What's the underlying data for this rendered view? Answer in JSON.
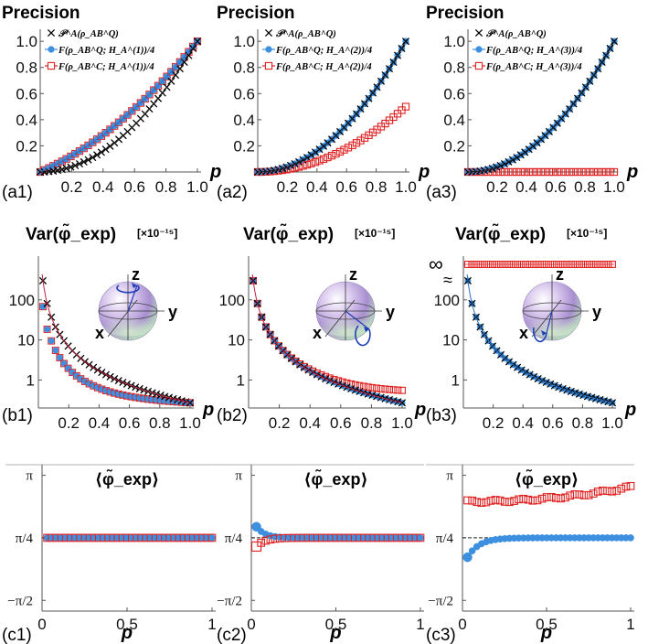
{
  "figure": {
    "colors": {
      "black": "#000000",
      "blue": "#3d8fe0",
      "red": "#e02020",
      "axis": "#555555",
      "fit": "#1a1a1a"
    }
  },
  "chart_data": [
    {
      "id": "a1",
      "type": "line",
      "panel_label": "(a1)",
      "title": "Precision",
      "xlabel": "p",
      "ylabel": "",
      "xlim": [
        0,
        1
      ],
      "ylim": [
        0,
        1.05
      ],
      "xticks": [
        "0.2",
        "0.4",
        "0.6",
        "0.8",
        "1.0"
      ],
      "yticks": [
        "0.2",
        "0.4",
        "0.6",
        "0.8",
        "1.0"
      ],
      "legend": [
        "𝒫^A(ρ_AB^Q)",
        "F(ρ_AB^Q; H_A^(1))/4",
        "F(ρ_AB^C; H_A^(1))/4"
      ],
      "series": [
        {
          "name": "black-x",
          "marker": "x",
          "formula": "p^2",
          "values_at": [
            0,
            0.5,
            1
          ],
          "values": [
            0,
            0.25,
            1
          ]
        },
        {
          "name": "blue-circle",
          "marker": "circle",
          "formula": "(p+p^2)/2 approx",
          "values_at": [
            0,
            0.5,
            1
          ],
          "values": [
            0,
            0.38,
            1
          ]
        },
        {
          "name": "red-square",
          "marker": "square",
          "formula": "same as blue",
          "values_at": [
            0,
            0.5,
            1
          ],
          "values": [
            0,
            0.38,
            1
          ]
        }
      ]
    },
    {
      "id": "a2",
      "type": "line",
      "panel_label": "(a2)",
      "title": "Precision",
      "xlabel": "p",
      "xlim": [
        0,
        1
      ],
      "ylim": [
        0,
        1.05
      ],
      "xticks": [
        "0.2",
        "0.4",
        "0.6",
        "0.8",
        "1.0"
      ],
      "yticks": [
        "0.2",
        "0.4",
        "0.6",
        "0.8",
        "1.0"
      ],
      "legend": [
        "𝒫^A(ρ_AB^Q)",
        "F(ρ_AB^Q; H_A^(2))/4",
        "F(ρ_AB^C; H_A^(2))/4"
      ],
      "series": [
        {
          "name": "black-x",
          "values_at": [
            0,
            0.5,
            1
          ],
          "values": [
            0,
            0.25,
            1
          ]
        },
        {
          "name": "blue-circle",
          "values_at": [
            0,
            0.5,
            1
          ],
          "values": [
            0,
            0.25,
            1
          ]
        },
        {
          "name": "red-square",
          "values_at": [
            0,
            0.5,
            1
          ],
          "values": [
            0,
            0.16,
            0.5
          ]
        }
      ]
    },
    {
      "id": "a3",
      "type": "line",
      "panel_label": "(a3)",
      "title": "Precision",
      "xlabel": "p",
      "xlim": [
        0,
        1
      ],
      "ylim": [
        0,
        1.05
      ],
      "xticks": [
        "0.2",
        "0.4",
        "0.6",
        "0.8",
        "1.0"
      ],
      "yticks": [
        "0.2",
        "0.4",
        "0.6",
        "0.8",
        "1.0"
      ],
      "legend": [
        "𝒫^A(ρ_AB^Q)",
        "F(ρ_AB^Q; H_A^(3))/4",
        "F(ρ_AB^C; H_A^(3))/4"
      ],
      "series": [
        {
          "name": "black-x",
          "values_at": [
            0,
            0.5,
            1
          ],
          "values": [
            0,
            0.25,
            1
          ]
        },
        {
          "name": "blue-circle",
          "values_at": [
            0,
            0.5,
            1
          ],
          "values": [
            0,
            0.25,
            1
          ]
        },
        {
          "name": "red-square",
          "values_at": [
            0,
            0.5,
            1
          ],
          "values": [
            0,
            0,
            0
          ]
        }
      ]
    },
    {
      "id": "b1",
      "type": "scatter",
      "panel_label": "(b1)",
      "title": "Var(φ̃_exp)",
      "unit": "[×10⁻¹⁵]",
      "xlabel": "p",
      "yscale": "log",
      "xlim": [
        0,
        1
      ],
      "ylim": [
        0.2,
        900
      ],
      "xticks": [
        "0.2",
        "0.4",
        "0.6",
        "0.8",
        "1.0"
      ],
      "yticks": [
        "1",
        "10",
        "100"
      ],
      "sphere_axes": [
        "z",
        "y",
        "x"
      ],
      "series": [
        {
          "name": "black-x",
          "formula": "1/p^2 scale",
          "values_at": [
            0.04,
            0.5,
            1
          ],
          "values": [
            220,
            1.1,
            0.27
          ]
        },
        {
          "name": "blue-circle",
          "values_at": [
            0.04,
            0.5,
            1
          ],
          "values": [
            60,
            0.5,
            0.27
          ]
        },
        {
          "name": "red-square",
          "values_at": [
            0.04,
            0.5,
            1
          ],
          "values": [
            60,
            0.5,
            0.27
          ]
        }
      ]
    },
    {
      "id": "b2",
      "type": "scatter",
      "panel_label": "(b2)",
      "title": "Var(φ̃_exp)",
      "unit": "[×10⁻¹⁵]",
      "xlabel": "p",
      "yscale": "log",
      "xlim": [
        0,
        1
      ],
      "ylim": [
        0.2,
        900
      ],
      "xticks": [
        "0.2",
        "0.4",
        "0.6",
        "0.8",
        "1.0"
      ],
      "yticks": [
        "1",
        "10",
        "100"
      ],
      "sphere_axes": [
        "z",
        "y",
        "x"
      ],
      "series": [
        {
          "name": "black-x",
          "values_at": [
            0.04,
            0.5,
            1
          ],
          "values": [
            220,
            1.1,
            0.27
          ]
        },
        {
          "name": "blue-circle",
          "values_at": [
            0.04,
            0.5,
            1
          ],
          "values": [
            220,
            1.1,
            0.27
          ]
        },
        {
          "name": "red-square",
          "values_at": [
            0.04,
            0.5,
            1
          ],
          "values": [
            220,
            1.5,
            0.55
          ]
        }
      ]
    },
    {
      "id": "b3",
      "type": "scatter",
      "panel_label": "(b3)",
      "title": "Var(φ̃_exp)",
      "unit": "[×10⁻¹⁵]",
      "xlabel": "p",
      "yscale": "log",
      "xlim": [
        0,
        1
      ],
      "ylim": [
        0.2,
        900
      ],
      "xticks": [
        "0.2",
        "0.4",
        "0.6",
        "0.8",
        "1.0"
      ],
      "yticks": [
        "1",
        "10",
        "100"
      ],
      "infinity_label": "∞",
      "break_label": "≈",
      "sphere_axes": [
        "z",
        "y",
        "x"
      ],
      "series": [
        {
          "name": "black-x",
          "values_at": [
            0.04,
            0.5,
            1
          ],
          "values": [
            220,
            1.1,
            0.27
          ]
        },
        {
          "name": "blue-circle",
          "values_at": [
            0.04,
            0.5,
            1
          ],
          "values": [
            220,
            1.1,
            0.27
          ]
        },
        {
          "name": "red-square",
          "value": "infinity"
        }
      ]
    },
    {
      "id": "c1",
      "type": "scatter",
      "panel_label": "(c1)",
      "title": "⟨φ̃_exp⟩",
      "xlabel": "p",
      "xlim": [
        0,
        1
      ],
      "ylim": [
        -1.7,
        3.3
      ],
      "xticks": [
        "0",
        "0.5",
        "1"
      ],
      "yticks": [
        "π",
        "π/4",
        "−π/2"
      ],
      "series": [
        {
          "name": "blue-circle",
          "values_at": [
            0.05,
            1
          ],
          "values": [
            0.785,
            0.785
          ]
        },
        {
          "name": "red-square",
          "values_at": [
            0.05,
            1
          ],
          "values": [
            0.785,
            0.785
          ]
        }
      ]
    },
    {
      "id": "c2",
      "type": "scatter",
      "panel_label": "(c2)",
      "title": "⟨φ̃_exp⟩",
      "xlabel": "p",
      "xlim": [
        0,
        1
      ],
      "ylim": [
        -1.7,
        3.3
      ],
      "xticks": [
        "0",
        "0.5",
        "1"
      ],
      "yticks": [
        "π",
        "π/4",
        "−π/2"
      ],
      "series": [
        {
          "name": "blue-circle",
          "values_at": [
            0.05,
            0.15,
            1
          ],
          "values": [
            1.05,
            0.85,
            0.785
          ]
        },
        {
          "name": "red-square",
          "values_at": [
            0.05,
            0.15,
            1
          ],
          "values": [
            0.55,
            0.7,
            0.785
          ]
        }
      ]
    },
    {
      "id": "c3",
      "type": "scatter",
      "panel_label": "(c3)",
      "title": "⟨φ̃_exp⟩",
      "xlabel": "p",
      "xlim": [
        0,
        1
      ],
      "ylim": [
        -1.7,
        3.3
      ],
      "xticks": [
        "0",
        "0.5",
        "1"
      ],
      "yticks": [
        "π",
        "π/4",
        "−π/2"
      ],
      "series": [
        {
          "name": "blue-circle",
          "values_at": [
            0.05,
            0.2,
            1
          ],
          "values": [
            0.2,
            0.6,
            0.785
          ]
        },
        {
          "name": "red-square",
          "values_at": [
            0.05,
            0.5,
            1
          ],
          "values": [
            2.15,
            2.3,
            2.75
          ]
        }
      ]
    }
  ]
}
